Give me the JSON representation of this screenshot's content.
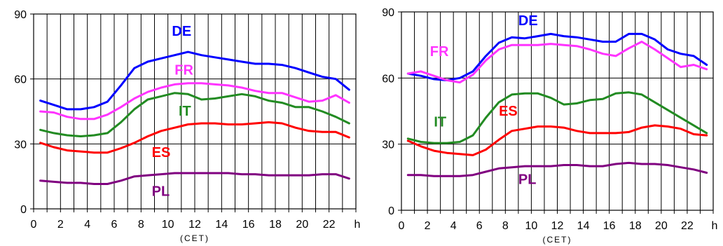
{
  "chart_data": [
    {
      "type": "line",
      "xlabel": "(CET)",
      "x_unit": "h",
      "xlim": [
        0,
        24
      ],
      "ylim": [
        0,
        90
      ],
      "x_ticks": [
        0,
        2,
        4,
        6,
        8,
        10,
        12,
        14,
        16,
        18,
        20,
        22
      ],
      "y_ticks": [
        0,
        30,
        60,
        90
      ],
      "grid": true,
      "x": [
        0.5,
        1.5,
        2.5,
        3.5,
        4.5,
        5.5,
        6.5,
        7.5,
        8.5,
        9.5,
        10.5,
        11.5,
        12.5,
        13.5,
        14.5,
        15.5,
        16.5,
        17.5,
        18.5,
        19.5,
        20.5,
        21.5,
        22.5,
        23.5
      ],
      "series": [
        {
          "name": "DE",
          "color": "#0000ff",
          "label_pos": [
            10.3,
            80
          ],
          "values": [
            50,
            48,
            46,
            46,
            47,
            49.5,
            57,
            65,
            68,
            69.5,
            71,
            72.5,
            71,
            70,
            69,
            68,
            67,
            67,
            66.5,
            65,
            63,
            61,
            60,
            55
          ]
        },
        {
          "name": "FR",
          "color": "#ff33ff",
          "label_pos": [
            10.5,
            62
          ],
          "values": [
            45,
            44.5,
            42.5,
            41.5,
            41.5,
            43.5,
            47,
            51,
            54,
            56,
            57.5,
            58,
            58,
            57.5,
            57,
            56,
            54.5,
            53.5,
            53.5,
            51.5,
            49.5,
            50,
            52.5,
            49
          ]
        },
        {
          "name": "IT",
          "color": "#228b22",
          "label_pos": [
            10.8,
            43
          ],
          "values": [
            36.5,
            35,
            34,
            33.5,
            34,
            35,
            40,
            46,
            50.5,
            52,
            53.5,
            53,
            50.5,
            51,
            52,
            53,
            52,
            50,
            49,
            47,
            47,
            45,
            42.5,
            39.5
          ]
        },
        {
          "name": "ES",
          "color": "#ff0000",
          "label_pos": [
            8.8,
            24
          ],
          "values": [
            30.5,
            28.5,
            27,
            26.5,
            26,
            26,
            28,
            30.5,
            33.5,
            36,
            37.5,
            39,
            39.5,
            39.5,
            39,
            39,
            39.5,
            40,
            39.5,
            37.5,
            36,
            35.5,
            35.5,
            33
          ]
        },
        {
          "name": "PL",
          "color": "#800080",
          "label_pos": [
            8.8,
            6
          ],
          "values": [
            13,
            12.5,
            12,
            12,
            11.5,
            11.5,
            13,
            15,
            15.5,
            16,
            16.5,
            16.5,
            16.5,
            16.5,
            16.5,
            16,
            16,
            15.5,
            15.5,
            15.5,
            15.5,
            16,
            16,
            14
          ]
        }
      ]
    },
    {
      "type": "line",
      "xlabel": "(CET)",
      "x_unit": "h",
      "xlim": [
        0,
        24
      ],
      "ylim": [
        0,
        90
      ],
      "x_ticks": [
        0,
        2,
        4,
        6,
        8,
        10,
        12,
        14,
        16,
        18,
        20,
        22
      ],
      "y_ticks": [
        0,
        30,
        60,
        90
      ],
      "grid": true,
      "x": [
        0.5,
        1.5,
        2.5,
        3.5,
        4.5,
        5.5,
        6.5,
        7.5,
        8.5,
        9.5,
        10.5,
        11.5,
        12.5,
        13.5,
        14.5,
        15.5,
        16.5,
        17.5,
        18.5,
        19.5,
        20.5,
        21.5,
        22.5,
        23.5
      ],
      "series": [
        {
          "name": "DE",
          "color": "#0000ff",
          "label_pos": [
            9.0,
            84
          ],
          "values": [
            62,
            61,
            59.5,
            59,
            60,
            63,
            70,
            76,
            78.5,
            78,
            79,
            80,
            79,
            78.5,
            77.5,
            76.5,
            76.5,
            80,
            80,
            77.5,
            73,
            71,
            70,
            66
          ]
        },
        {
          "name": "FR",
          "color": "#ff33ff",
          "label_pos": [
            2.2,
            70
          ],
          "values": [
            62,
            63,
            61,
            59,
            58,
            61.5,
            68,
            73,
            75,
            75,
            75,
            75.5,
            75,
            74.5,
            73,
            71,
            70,
            73.5,
            76.5,
            73,
            69,
            65,
            66,
            64
          ]
        },
        {
          "name": "IT",
          "color": "#228b22",
          "label_pos": [
            2.5,
            38
          ],
          "values": [
            32.5,
            31,
            30.5,
            30.5,
            31,
            34,
            42,
            49,
            52.5,
            53,
            53,
            51,
            48,
            48.5,
            50,
            50.5,
            53,
            53.5,
            52.5,
            49,
            45.5,
            42,
            38.5,
            35
          ]
        },
        {
          "name": "ES",
          "color": "#ff0000",
          "label_pos": [
            7.5,
            43
          ],
          "values": [
            31.5,
            29,
            27,
            26,
            25.5,
            25,
            27.5,
            32,
            36,
            37,
            38,
            38,
            37.5,
            36,
            35,
            35,
            35,
            35.5,
            37.5,
            38.5,
            38,
            37,
            34.5,
            34
          ]
        },
        {
          "name": "PL",
          "color": "#800080",
          "label_pos": [
            9.0,
            12
          ],
          "values": [
            16,
            16,
            15.5,
            15.5,
            15.5,
            16,
            17.5,
            19,
            19.5,
            20,
            20,
            20,
            20.5,
            20.5,
            20,
            20,
            21,
            21.5,
            21,
            21,
            20.5,
            19.5,
            18.5,
            17
          ]
        }
      ]
    }
  ]
}
